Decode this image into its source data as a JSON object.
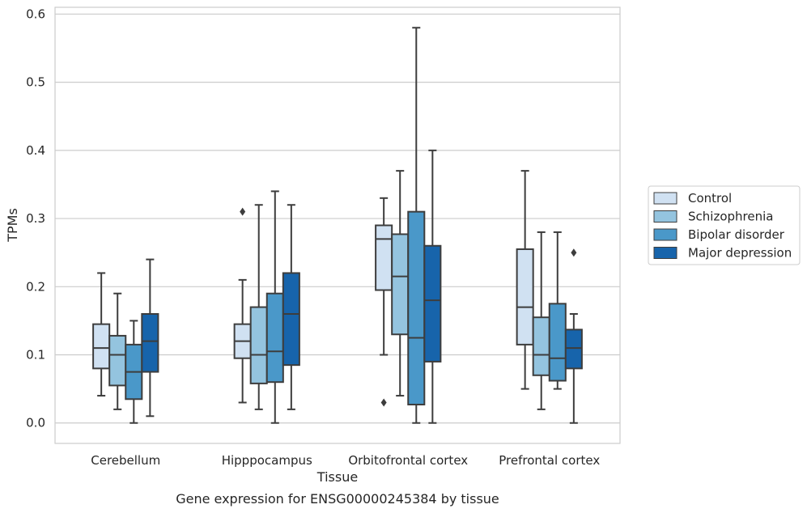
{
  "chart_data": {
    "type": "box",
    "title": "",
    "caption": "Gene expression for ENSG00000245384 by tissue",
    "xlabel": "Tissue",
    "ylabel": "TPMs",
    "ylim": [
      -0.03,
      0.61
    ],
    "yticks": [
      0.0,
      0.1,
      0.2,
      0.3,
      0.4,
      0.5,
      0.6
    ],
    "ytick_labels": [
      "0.0",
      "0.1",
      "0.2",
      "0.3",
      "0.4",
      "0.5",
      "0.6"
    ],
    "grid": "horizontal",
    "legend_position": "right",
    "categories": [
      "Cerebellum",
      "Hipppocampus",
      "Orbitofrontal cortex",
      "Prefrontal cortex"
    ],
    "series": [
      {
        "name": "Control",
        "color": "#d0e1f2",
        "boxes": [
          {
            "min": 0.04,
            "q1": 0.08,
            "median": 0.11,
            "q3": 0.145,
            "max": 0.22,
            "outliers": []
          },
          {
            "min": 0.03,
            "q1": 0.095,
            "median": 0.12,
            "q3": 0.145,
            "max": 0.21,
            "outliers": [
              0.31
            ]
          },
          {
            "min": 0.1,
            "q1": 0.195,
            "median": 0.27,
            "q3": 0.29,
            "max": 0.33,
            "outliers": [
              0.03
            ]
          },
          {
            "min": 0.05,
            "q1": 0.115,
            "median": 0.17,
            "q3": 0.255,
            "max": 0.37,
            "outliers": []
          }
        ]
      },
      {
        "name": "Schizophrenia",
        "color": "#94c4df",
        "boxes": [
          {
            "min": 0.02,
            "q1": 0.055,
            "median": 0.1,
            "q3": 0.128,
            "max": 0.19,
            "outliers": []
          },
          {
            "min": 0.02,
            "q1": 0.058,
            "median": 0.1,
            "q3": 0.17,
            "max": 0.32,
            "outliers": []
          },
          {
            "min": 0.04,
            "q1": 0.13,
            "median": 0.215,
            "q3": 0.277,
            "max": 0.37,
            "outliers": []
          },
          {
            "min": 0.02,
            "q1": 0.07,
            "median": 0.1,
            "q3": 0.155,
            "max": 0.28,
            "outliers": []
          }
        ]
      },
      {
        "name": "Bipolar disorder",
        "color": "#4a98c9",
        "boxes": [
          {
            "min": 0.0,
            "q1": 0.035,
            "median": 0.075,
            "q3": 0.115,
            "max": 0.15,
            "outliers": []
          },
          {
            "min": 0.0,
            "q1": 0.06,
            "median": 0.105,
            "q3": 0.19,
            "max": 0.34,
            "outliers": []
          },
          {
            "min": 0.0,
            "q1": 0.027,
            "median": 0.125,
            "q3": 0.31,
            "max": 0.58,
            "outliers": []
          },
          {
            "min": 0.05,
            "q1": 0.062,
            "median": 0.095,
            "q3": 0.175,
            "max": 0.28,
            "outliers": []
          }
        ]
      },
      {
        "name": "Major depression",
        "color": "#1764ab",
        "boxes": [
          {
            "min": 0.01,
            "q1": 0.075,
            "median": 0.12,
            "q3": 0.16,
            "max": 0.24,
            "outliers": []
          },
          {
            "min": 0.02,
            "q1": 0.085,
            "median": 0.16,
            "q3": 0.22,
            "max": 0.32,
            "outliers": []
          },
          {
            "min": 0.0,
            "q1": 0.09,
            "median": 0.18,
            "q3": 0.26,
            "max": 0.4,
            "outliers": []
          },
          {
            "min": 0.0,
            "q1": 0.08,
            "median": 0.11,
            "q3": 0.137,
            "max": 0.16,
            "outliers": [
              0.25
            ]
          }
        ]
      }
    ]
  }
}
